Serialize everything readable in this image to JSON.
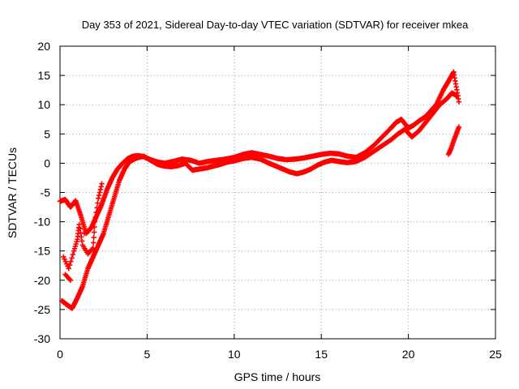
{
  "chart_data": {
    "type": "scatter",
    "title": "Day 353 of 2021, Sidereal Day-to-day VTEC variation (SDTVAR) for receiver mkea",
    "xlabel": "GPS time / hours",
    "ylabel": "SDTVAR / TECUs",
    "xlim": [
      0,
      25
    ],
    "ylim": [
      -30,
      20
    ],
    "xticks": [
      0,
      5,
      10,
      15,
      20,
      25
    ],
    "yticks": [
      -30,
      -25,
      -20,
      -15,
      -10,
      -5,
      0,
      5,
      10,
      15,
      20
    ],
    "grid": true,
    "marker": "+",
    "series": [
      {
        "name": "main-track-upper",
        "color": "#ff0000",
        "points": [
          [
            0.0,
            -6.5
          ],
          [
            0.3,
            -6.2
          ],
          [
            0.6,
            -7.5
          ],
          [
            0.9,
            -6.4
          ],
          [
            1.2,
            -9.0
          ],
          [
            1.5,
            -12.0
          ],
          [
            1.8,
            -11.0
          ],
          [
            2.1,
            -9.0
          ],
          [
            2.4,
            -7.0
          ],
          [
            2.7,
            -4.5
          ],
          [
            3.0,
            -2.5
          ],
          [
            3.3,
            -1.0
          ],
          [
            3.6,
            0.0
          ],
          [
            3.9,
            0.8
          ],
          [
            4.2,
            1.2
          ],
          [
            4.5,
            1.3
          ],
          [
            4.8,
            1.1
          ],
          [
            5.2,
            0.6
          ],
          [
            5.6,
            0.2
          ],
          [
            6.0,
            0.0
          ],
          [
            6.5,
            0.3
          ],
          [
            7.0,
            0.7
          ],
          [
            7.5,
            0.5
          ],
          [
            8.0,
            0.0
          ],
          [
            8.5,
            0.3
          ],
          [
            9.0,
            0.5
          ],
          [
            9.5,
            0.7
          ],
          [
            10.0,
            1.0
          ],
          [
            10.5,
            1.5
          ],
          [
            11.0,
            1.8
          ],
          [
            11.5,
            1.5
          ],
          [
            12.0,
            1.2
          ],
          [
            12.5,
            0.8
          ],
          [
            13.0,
            0.6
          ],
          [
            13.5,
            0.7
          ],
          [
            14.0,
            0.9
          ],
          [
            14.5,
            1.2
          ],
          [
            15.0,
            1.5
          ],
          [
            15.5,
            1.7
          ],
          [
            16.0,
            1.6
          ],
          [
            16.5,
            1.2
          ],
          [
            17.0,
            1.0
          ],
          [
            17.5,
            1.8
          ],
          [
            18.0,
            3.0
          ],
          [
            18.5,
            4.5
          ],
          [
            19.0,
            6.0
          ],
          [
            19.3,
            7.0
          ],
          [
            19.6,
            7.5
          ],
          [
            20.0,
            6.0
          ],
          [
            20.3,
            6.5
          ],
          [
            20.6,
            7.2
          ],
          [
            21.0,
            8.0
          ],
          [
            21.3,
            9.0
          ],
          [
            21.6,
            10.0
          ],
          [
            22.0,
            12.5
          ],
          [
            22.3,
            14.0
          ],
          [
            22.6,
            15.6
          ],
          [
            22.9,
            10.5
          ]
        ]
      },
      {
        "name": "main-track-lower",
        "color": "#ff0000",
        "points": [
          [
            0.1,
            -23.5
          ],
          [
            0.4,
            -24.2
          ],
          [
            0.7,
            -24.8
          ],
          [
            1.0,
            -23.0
          ],
          [
            1.3,
            -21.0
          ],
          [
            1.6,
            -18.0
          ],
          [
            1.9,
            -16.0
          ],
          [
            2.2,
            -14.0
          ],
          [
            2.5,
            -12.0
          ],
          [
            2.8,
            -9.0
          ],
          [
            3.1,
            -6.0
          ],
          [
            3.4,
            -3.0
          ],
          [
            3.7,
            -1.0
          ],
          [
            4.0,
            0.3
          ],
          [
            4.4,
            0.9
          ],
          [
            4.8,
            1.2
          ],
          [
            5.2,
            0.5
          ],
          [
            5.6,
            -0.2
          ],
          [
            6.0,
            -0.5
          ],
          [
            6.4,
            -0.6
          ],
          [
            6.8,
            -0.4
          ],
          [
            7.2,
            0.0
          ],
          [
            7.6,
            -1.2
          ],
          [
            8.0,
            -1.0
          ],
          [
            8.4,
            -0.8
          ],
          [
            8.8,
            -0.5
          ],
          [
            9.2,
            -0.2
          ],
          [
            9.6,
            0.2
          ],
          [
            10.0,
            0.4
          ],
          [
            10.5,
            0.8
          ],
          [
            11.0,
            1.0
          ],
          [
            11.5,
            0.7
          ],
          [
            12.0,
            0.0
          ],
          [
            12.4,
            -0.5
          ],
          [
            12.8,
            -1.0
          ],
          [
            13.2,
            -1.5
          ],
          [
            13.6,
            -1.8
          ],
          [
            14.0,
            -1.5
          ],
          [
            14.4,
            -1.0
          ],
          [
            14.8,
            -0.3
          ],
          [
            15.2,
            0.2
          ],
          [
            15.6,
            0.5
          ],
          [
            16.0,
            0.3
          ],
          [
            16.5,
            0.1
          ],
          [
            17.0,
            0.3
          ],
          [
            17.5,
            1.0
          ],
          [
            18.0,
            2.0
          ],
          [
            18.5,
            3.0
          ],
          [
            19.0,
            4.0
          ],
          [
            19.4,
            5.0
          ],
          [
            19.8,
            5.8
          ],
          [
            20.2,
            4.5
          ],
          [
            20.6,
            5.5
          ],
          [
            21.0,
            7.0
          ],
          [
            21.4,
            8.5
          ],
          [
            21.8,
            10.0
          ],
          [
            22.2,
            11.0
          ],
          [
            22.5,
            12.0
          ],
          [
            22.8,
            11.5
          ]
        ]
      },
      {
        "name": "early-scatter",
        "color": "#ff0000",
        "points": [
          [
            0.2,
            -16.0
          ],
          [
            0.5,
            -18.0
          ],
          [
            0.8,
            -15.0
          ],
          [
            1.0,
            -13.0
          ],
          [
            1.1,
            -10.5
          ],
          [
            1.3,
            -14.0
          ],
          [
            1.6,
            -15.5
          ],
          [
            1.9,
            -14.5
          ],
          [
            2.0,
            -10.0
          ],
          [
            2.2,
            -6.0
          ],
          [
            2.4,
            -3.5
          ],
          [
            0.3,
            -19.0
          ],
          [
            0.6,
            -20.0
          ],
          [
            1.4,
            -12.0
          ]
        ]
      },
      {
        "name": "late-segment",
        "color": "#ff0000",
        "points": [
          [
            22.3,
            1.5
          ],
          [
            22.45,
            2.5
          ],
          [
            22.6,
            3.8
          ],
          [
            22.75,
            5.0
          ],
          [
            22.9,
            6.2
          ]
        ]
      }
    ]
  }
}
